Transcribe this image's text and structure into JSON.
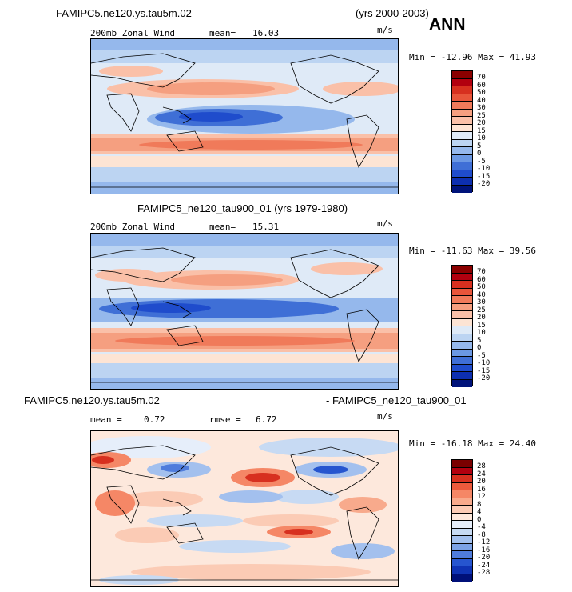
{
  "header": {
    "case_a": "FAMIPC5.ne120.ys.tau5m.02",
    "years_a": "(yrs 2000-2003)",
    "season": "ANN"
  },
  "panels": [
    {
      "id": "p1",
      "left_label": "200mb Zonal Wind",
      "mean_label": "mean=",
      "mean_value": "16.03",
      "units": "m/s",
      "min_max": "Min = -12.96 Max =  41.93",
      "colorbar_labels": [
        "70",
        "60",
        "50",
        "40",
        "30",
        "25",
        "20",
        "15",
        "10",
        "5",
        "0",
        "-5",
        "-10",
        "-15",
        "-20"
      ]
    },
    {
      "id": "p2",
      "title": "FAMIPC5_ne120_tau900_01 (yrs 1979-1980)",
      "left_label": "200mb Zonal Wind",
      "mean_label": "mean=",
      "mean_value": "15.31",
      "units": "m/s",
      "min_max": "Min = -11.63 Max =  39.56",
      "colorbar_labels": [
        "70",
        "60",
        "50",
        "40",
        "30",
        "25",
        "20",
        "15",
        "10",
        "5",
        "0",
        "-5",
        "-10",
        "-15",
        "-20"
      ]
    },
    {
      "id": "p3",
      "title_left": "FAMIPC5.ne120.ys.tau5m.02",
      "title_right": "- FAMIPC5_ne120_tau900_01",
      "mean_label": "mean =",
      "mean_value": "0.72",
      "rmse_label": "rmse =",
      "rmse_value": "6.72",
      "units": "m/s",
      "min_max": "Min = -16.18 Max =  24.40",
      "colorbar_labels": [
        "28",
        "24",
        "20",
        "16",
        "12",
        "8",
        "4",
        "0",
        "-4",
        "-8",
        "-12",
        "-16",
        "-20",
        "-24",
        "-28"
      ]
    }
  ],
  "colors": {
    "wind_scale": [
      "#8b0000",
      "#b2000f",
      "#d7301f",
      "#e8553a",
      "#f07a5a",
      "#f59f80",
      "#fac0a8",
      "#fde4d4",
      "#dfeaf7",
      "#bcd4f2",
      "#95b8ec",
      "#6b98e3",
      "#3f6fd6",
      "#1f4ccc",
      "#0d2fb0",
      "#00137a"
    ],
    "diff_scale": [
      "#7a0000",
      "#b2000f",
      "#d7301f",
      "#ec5a3c",
      "#f58766",
      "#f8aa8c",
      "#fbcbb5",
      "#fde8dc",
      "#e6eefa",
      "#c7daf3",
      "#a3c0ee",
      "#7ca2e6",
      "#4f7cdc",
      "#2655cf",
      "#0f33b4",
      "#001079"
    ]
  },
  "chart_data": [
    {
      "type": "heatmap",
      "title": "200mb Zonal Wind",
      "case": "FAMIPC5.ne120.ys.tau5m.02 (yrs 2000-2003) ANN",
      "units": "m/s",
      "mean": 16.03,
      "min": -12.96,
      "max": 41.93,
      "levels": [
        -20,
        -15,
        -10,
        -5,
        0,
        5,
        10,
        15,
        20,
        25,
        30,
        40,
        50,
        60,
        70
      ]
    },
    {
      "type": "heatmap",
      "title": "200mb Zonal Wind",
      "case": "FAMIPC5_ne120_tau900_01 (yrs 1979-1980)",
      "units": "m/s",
      "mean": 15.31,
      "min": -11.63,
      "max": 39.56,
      "levels": [
        -20,
        -15,
        -10,
        -5,
        0,
        5,
        10,
        15,
        20,
        25,
        30,
        40,
        50,
        60,
        70
      ]
    },
    {
      "type": "heatmap",
      "title": "FAMIPC5.ne120.ys.tau5m.02 - FAMIPC5_ne120_tau900_01",
      "units": "m/s",
      "mean": 0.72,
      "rmse": 6.72,
      "min": -16.18,
      "max": 24.4,
      "levels": [
        -28,
        -24,
        -20,
        -16,
        -12,
        -8,
        -4,
        0,
        4,
        8,
        12,
        16,
        20,
        24,
        28
      ]
    }
  ]
}
